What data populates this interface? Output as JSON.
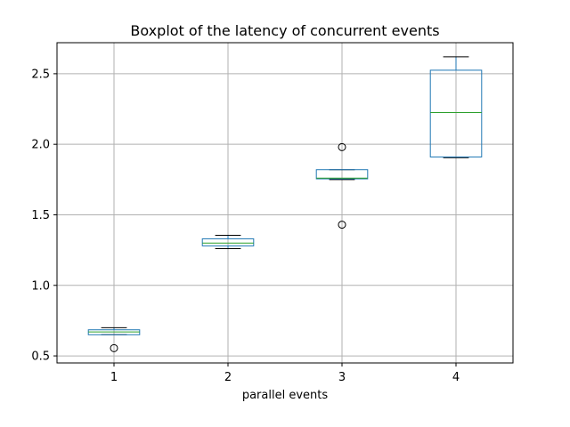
{
  "chart_data": {
    "type": "boxplot",
    "title": "Boxplot of the latency of concurrent events",
    "xlabel": "parallel events",
    "ylabel": "",
    "categories": [
      "1",
      "2",
      "3",
      "4"
    ],
    "yticks": [
      0.5,
      1.0,
      1.5,
      2.0,
      2.5
    ],
    "ytick_labels": [
      "0.5",
      "1.0",
      "1.5",
      "2.0",
      "2.5"
    ],
    "ylim": [
      0.45,
      2.72
    ],
    "grid": true,
    "colors": {
      "box": "#1f77b4",
      "median": "#2ca02c",
      "whisker": "#1f77b4",
      "cap": "#000000",
      "grid": "#b0b0b0",
      "outlier": "#000000"
    },
    "boxes": [
      {
        "label": "1",
        "whisker_low": 0.65,
        "q1": 0.65,
        "median": 0.67,
        "q3": 0.685,
        "whisker_high": 0.7,
        "outliers": [
          0.555
        ]
      },
      {
        "label": "2",
        "whisker_low": 1.26,
        "q1": 1.28,
        "median": 1.3,
        "q3": 1.33,
        "whisker_high": 1.355,
        "outliers": []
      },
      {
        "label": "3",
        "whisker_low": 1.75,
        "q1": 1.755,
        "median": 1.76,
        "q3": 1.82,
        "whisker_high": 1.82,
        "outliers": [
          1.98,
          1.43
        ]
      },
      {
        "label": "4",
        "whisker_low": 1.905,
        "q1": 1.91,
        "median": 2.225,
        "q3": 2.525,
        "whisker_high": 2.62,
        "outliers": []
      }
    ]
  }
}
